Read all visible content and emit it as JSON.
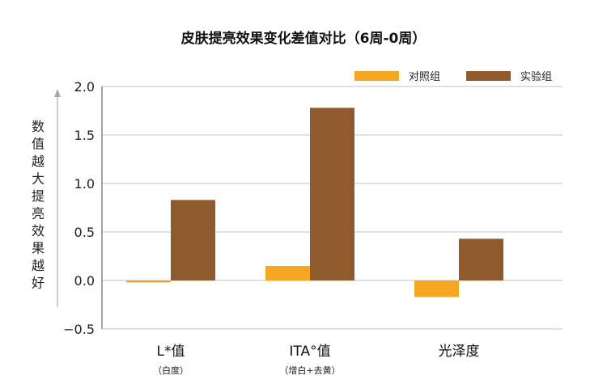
{
  "chart_data": {
    "type": "bar",
    "title": "皮肤提亮效果变化差值对比（6周-0周）",
    "ylabel": "数值越大提亮效果越好",
    "ylim": [
      -0.5,
      2.0
    ],
    "yticks": [
      -0.5,
      0.0,
      0.5,
      1.0,
      1.5,
      2.0
    ],
    "ytick_labels": [
      "−0.5",
      "0.0",
      "0.5",
      "1.0",
      "1.5",
      "2.0"
    ],
    "grid": true,
    "legend_position": "top-right",
    "categories": [
      "L*值",
      "ITA°值",
      "光泽度"
    ],
    "category_sublabels": [
      "（白度）",
      "（增白+去黄）",
      ""
    ],
    "series": [
      {
        "name": "对照组",
        "color": "#F5A623",
        "values": [
          -0.02,
          0.15,
          -0.17
        ]
      },
      {
        "name": "实验组",
        "color": "#8E5A2E",
        "values": [
          0.83,
          1.78,
          0.43
        ]
      }
    ]
  }
}
